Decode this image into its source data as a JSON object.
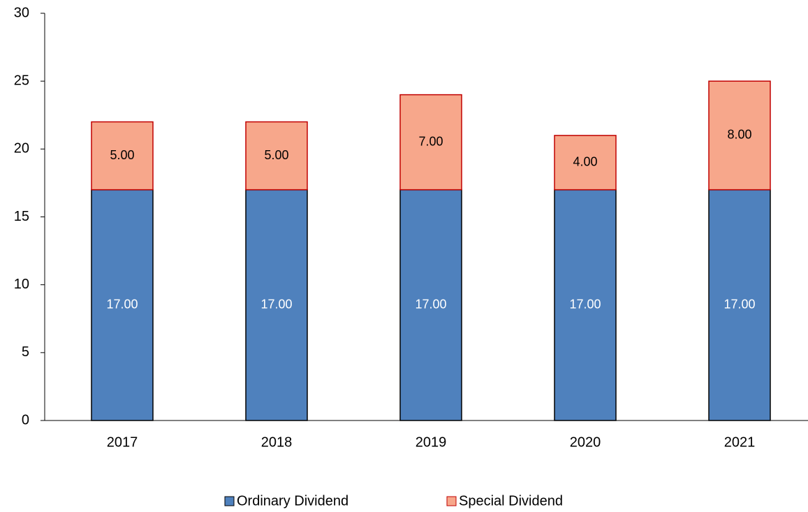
{
  "chart_data": {
    "type": "stacked_bar",
    "categories": [
      "2017",
      "2018",
      "2019",
      "2020",
      "2021"
    ],
    "series": [
      {
        "name": "Ordinary Dividend",
        "color": "#4f81bd",
        "edge": "#000000",
        "label_color": "#ffffff",
        "values": [
          17,
          17,
          17,
          17,
          17
        ],
        "value_labels": [
          "17.00",
          "17.00",
          "17.00",
          "17.00",
          "17.00"
        ]
      },
      {
        "name": "Special Dividend",
        "color": "#f7a78b",
        "edge": "#c00000",
        "label_color": "#000000",
        "values": [
          5,
          5,
          7,
          4,
          8
        ],
        "value_labels": [
          "5.00",
          "5.00",
          "7.00",
          "4.00",
          "8.00"
        ]
      }
    ],
    "ylim": [
      0,
      30
    ],
    "yticks": [
      0,
      5,
      10,
      15,
      20,
      25,
      30
    ],
    "grid": false,
    "legend": "bottom"
  }
}
